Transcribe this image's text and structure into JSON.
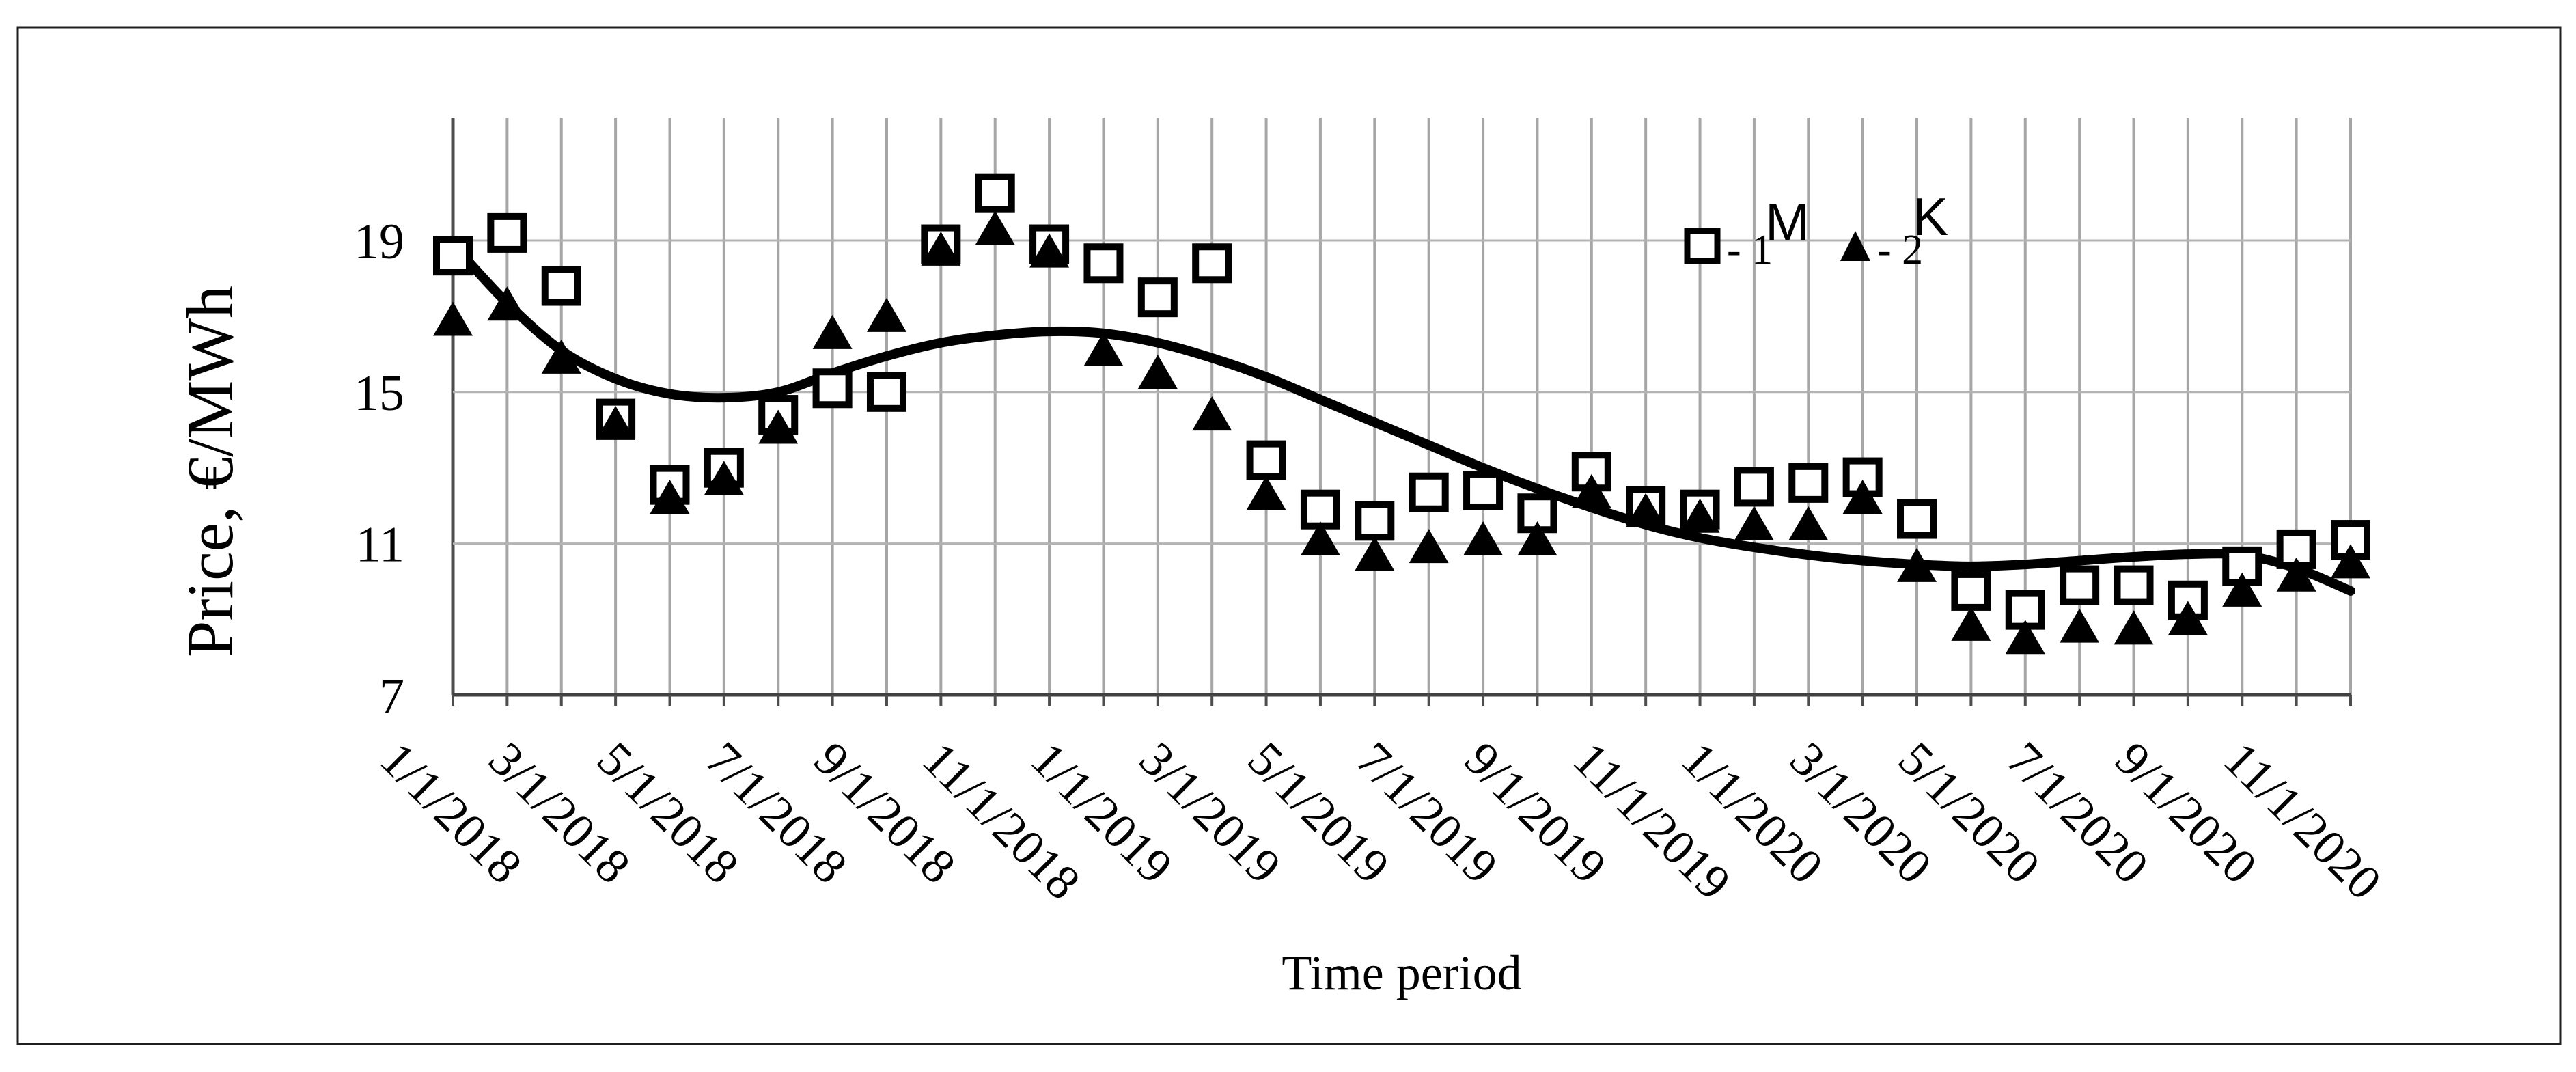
{
  "figure": {
    "y_axis_title": "Price, €/MWh",
    "x_axis_title": "Time period",
    "legend": {
      "series1": {
        "marker": "hollow-square-icon",
        "label": "- 1",
        "superscript": "M"
      },
      "series2": {
        "marker": "filled-triangle-icon",
        "label": "- 2",
        "superscript": "K"
      }
    }
  },
  "chart_data": {
    "type": "scatter",
    "title": "",
    "xlabel": "Time period",
    "ylabel": "Price, €/MWh",
    "x_categories": [
      "1/1/2018",
      "2/1/2018",
      "3/1/2018",
      "4/1/2018",
      "5/1/2018",
      "6/1/2018",
      "7/1/2018",
      "8/1/2018",
      "9/1/2018",
      "10/1/2018",
      "11/1/2018",
      "12/1/2018",
      "1/1/2019",
      "2/1/2019",
      "3/1/2019",
      "4/1/2019",
      "5/1/2019",
      "6/1/2019",
      "7/1/2019",
      "8/1/2019",
      "9/1/2019",
      "10/1/2019",
      "11/1/2019",
      "12/1/2019",
      "1/1/2020",
      "2/1/2020",
      "3/1/2020",
      "4/1/2020",
      "5/1/2020",
      "6/1/2020",
      "7/1/2020",
      "8/1/2020",
      "9/1/2020",
      "10/1/2020",
      "11/1/2020",
      "12/1/2020"
    ],
    "x_tick_labels": [
      "1/1/2018",
      "3/1/2018",
      "5/1/2018",
      "7/1/2018",
      "9/1/2018",
      "11/1/2018",
      "1/1/2019",
      "3/1/2019",
      "5/1/2019",
      "7/1/2019",
      "9/1/2019",
      "11/1/2019",
      "1/1/2020",
      "3/1/2020",
      "5/1/2020",
      "7/1/2020",
      "9/1/2020",
      "11/1/2020"
    ],
    "x_tick_every": 2,
    "y_ticks": [
      19,
      15,
      11,
      7
    ],
    "ylim": [
      7,
      22.25
    ],
    "grid": "vertical-monthly and horizontal-at-ticks",
    "legend_position": "inside-top-right",
    "series": [
      {
        "name": "1",
        "legend_superscript": "M",
        "marker": "hollow-square",
        "values": [
          18.6,
          19.2,
          17.8,
          14.3,
          12.55,
          13.0,
          14.4,
          15.1,
          15.0,
          18.9,
          20.25,
          18.9,
          18.4,
          17.5,
          18.4,
          13.2,
          11.9,
          11.6,
          12.35,
          12.4,
          11.8,
          12.9,
          12.0,
          11.9,
          12.5,
          12.6,
          12.75,
          11.65,
          9.75,
          9.25,
          9.9,
          9.9,
          9.5,
          10.4,
          10.85,
          11.1
        ]
      },
      {
        "name": "2",
        "legend_superscript": "K",
        "marker": "filled-triangle",
        "values": [
          16.9,
          17.3,
          15.9,
          14.15,
          12.2,
          12.7,
          14.05,
          16.55,
          17.0,
          18.75,
          19.3,
          18.7,
          16.1,
          15.5,
          14.4,
          12.3,
          11.1,
          10.7,
          10.9,
          11.1,
          11.1,
          12.35,
          11.85,
          11.7,
          11.5,
          11.5,
          12.2,
          10.4,
          8.85,
          8.5,
          8.8,
          8.75,
          9.0,
          9.75,
          10.15,
          10.5
        ]
      },
      {
        "name": "trend",
        "marker": "none",
        "style": "thick-smooth-line",
        "values": [
          18.9,
          17.35,
          16.1,
          15.35,
          14.95,
          14.85,
          15.0,
          15.5,
          15.95,
          16.3,
          16.5,
          16.6,
          16.55,
          16.3,
          15.9,
          15.4,
          14.8,
          14.2,
          13.6,
          13.0,
          12.45,
          11.95,
          11.5,
          11.15,
          10.9,
          10.7,
          10.55,
          10.45,
          10.4,
          10.45,
          10.55,
          10.65,
          10.72,
          10.7,
          10.35,
          9.75
        ]
      }
    ],
    "colors": {
      "foreground": "#000000",
      "gridline": "#a6a6a6",
      "axis": "#4d4d4d",
      "marker_fill": "#ffffff"
    }
  }
}
